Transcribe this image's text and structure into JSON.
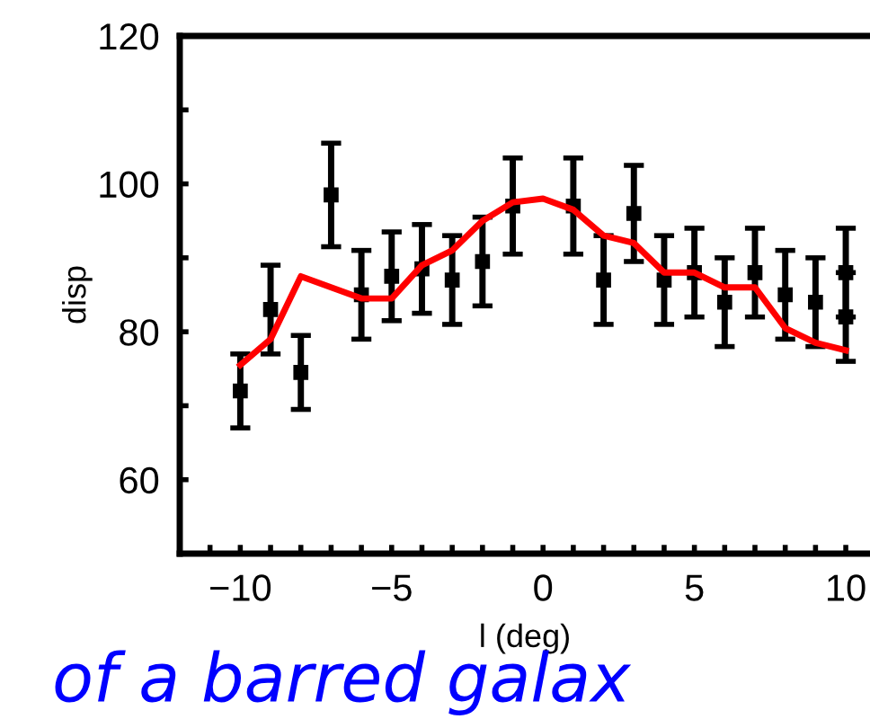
{
  "chart_data": {
    "type": "scatter",
    "xlabel": "l (deg)",
    "ylabel": "disp",
    "xlim": [
      -12,
      10.8
    ],
    "ylim": [
      50,
      120
    ],
    "xticks": [
      {
        "value": -12,
        "label": null
      },
      {
        "value": -11,
        "label": null
      },
      -10,
      {
        "value": -9,
        "label": null
      },
      {
        "value": -8,
        "label": null
      },
      {
        "value": -7,
        "label": null
      },
      {
        "value": -6,
        "label": null
      },
      {
        "value": -5,
        "label": "−5"
      },
      {
        "value": -4,
        "label": null
      },
      {
        "value": -3,
        "label": null
      },
      {
        "value": -2,
        "label": null
      },
      {
        "value": -1,
        "label": null
      },
      0,
      {
        "value": 1,
        "label": null
      },
      {
        "value": 2,
        "label": null
      },
      {
        "value": 3,
        "label": null
      },
      {
        "value": 4,
        "label": null
      },
      5,
      {
        "value": 6,
        "label": null
      },
      {
        "value": 7,
        "label": null
      },
      {
        "value": 8,
        "label": null
      },
      {
        "value": 9,
        "label": null
      },
      10
    ],
    "yticks": [
      60,
      {
        "value": 70,
        "label": null
      },
      80,
      {
        "value": 90,
        "label": null
      },
      100,
      {
        "value": 110,
        "label": null
      },
      120
    ],
    "grid": false,
    "legend": false,
    "series": [
      {
        "color": "#000000",
        "marker": "square",
        "x": [
          -10,
          -9,
          -8,
          -7,
          -6,
          -5,
          -4,
          -3,
          -2,
          -1,
          1,
          2,
          3,
          4,
          5,
          6,
          7,
          8,
          9,
          10,
          10
        ],
        "values": [
          72,
          83,
          74.5,
          98.5,
          85,
          87.5,
          88.5,
          87,
          89.5,
          97,
          97,
          87,
          96,
          87,
          88,
          84,
          88,
          85,
          84,
          88,
          82
        ],
        "errors": [
          5,
          6,
          5,
          7,
          6,
          6,
          6,
          6,
          6,
          6.5,
          6.5,
          6,
          6.5,
          6,
          6,
          6,
          6,
          6,
          6,
          6,
          6
        ]
      },
      {
        "type": "line",
        "color": "#ff0000",
        "marker": "none",
        "line_style": "solid",
        "x": [
          -10,
          -9,
          -8,
          -6,
          -5,
          -4,
          -3,
          -2,
          -1,
          0,
          1,
          2,
          3,
          4,
          5,
          6,
          7,
          8,
          9,
          10
        ],
        "values": [
          75.5,
          79,
          87.5,
          84.5,
          84.5,
          89,
          91,
          95,
          97.5,
          98,
          96.5,
          93,
          92,
          88,
          88,
          86,
          86,
          80.5,
          78.5,
          77.5
        ]
      }
    ],
    "annotations": [
      "of a barred galax"
    ]
  }
}
